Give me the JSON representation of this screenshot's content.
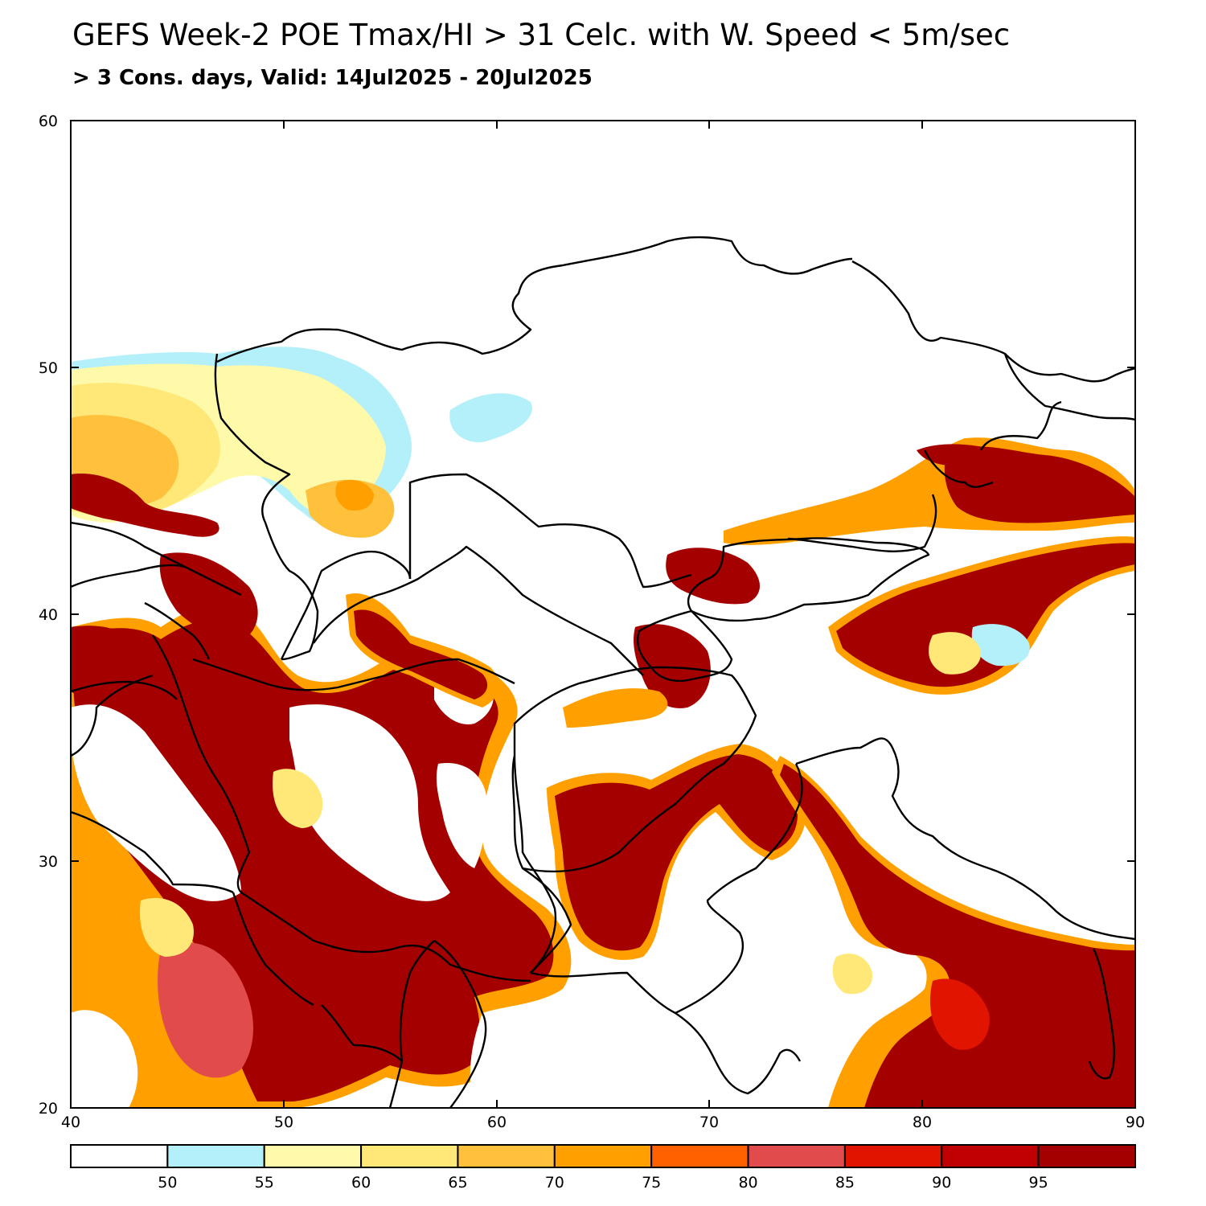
{
  "title": "GEFS Week-2 POE Tmax/HI > 31 Celc. with W. Speed < 5m/sec",
  "subtitle": "> 3 Cons. days, Valid: 14Jul2025 - 20Jul2025",
  "axes": {
    "x_ticks": [
      "40",
      "50",
      "60",
      "70",
      "80",
      "90"
    ],
    "y_ticks": [
      "20",
      "30",
      "40",
      "50",
      "60"
    ],
    "x_range": [
      40,
      90
    ],
    "y_range": [
      20,
      60
    ]
  },
  "colorbar": {
    "labels": [
      "50",
      "55",
      "60",
      "65",
      "70",
      "75",
      "80",
      "85",
      "90",
      "95"
    ],
    "colors": [
      "#ffffff",
      "#b4f0fa",
      "#fffaaa",
      "#ffe878",
      "#ffc03c",
      "#ffa000",
      "#ff6000",
      "#e14b4b",
      "#e11400",
      "#c00000",
      "#a50000"
    ]
  },
  "colors": {
    "border": "#000000",
    "background": "#ffffff"
  }
}
